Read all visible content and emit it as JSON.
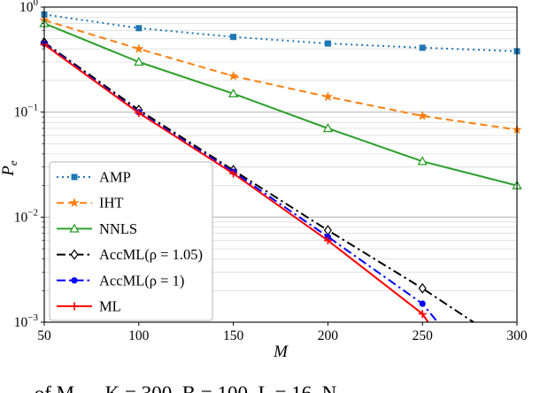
{
  "chart_data": {
    "type": "line",
    "title": "",
    "xlabel": "M",
    "ylabel": "P_e",
    "xlim": [
      50,
      300
    ],
    "ylim": [
      0.001,
      1
    ],
    "yscale": "log",
    "x_ticks": [
      50,
      100,
      150,
      200,
      250,
      300
    ],
    "y_tick_exponents": [
      0,
      -1,
      -2,
      -3
    ],
    "grid": "horizontal major and minor (log), light gray",
    "legend_position": "lower left",
    "series": [
      {
        "name": "AMP",
        "color": "#1f77b4",
        "line": "dotted",
        "marker": "square",
        "x": [
          50,
          100,
          150,
          200,
          250,
          300
        ],
        "y": [
          0.85,
          0.63,
          0.52,
          0.45,
          0.41,
          0.38
        ]
      },
      {
        "name": "IHT",
        "color": "#ff7f0e",
        "line": "dashed",
        "marker": "star",
        "x": [
          50,
          100,
          150,
          200,
          250,
          300
        ],
        "y": [
          0.75,
          0.4,
          0.22,
          0.14,
          0.092,
          0.068
        ]
      },
      {
        "name": "NNLS",
        "color": "#2ca02c",
        "line": "solid",
        "marker": "triangle",
        "x": [
          50,
          100,
          150,
          200,
          250,
          300
        ],
        "y": [
          0.7,
          0.3,
          0.15,
          0.07,
          0.034,
          0.02
        ]
      },
      {
        "name": "AccML(ρ = 1.05)",
        "color": "#000000",
        "line": "dashdot",
        "marker": "diamond",
        "x": [
          50,
          100,
          150,
          200,
          250,
          277
        ],
        "y": [
          0.46,
          0.105,
          0.028,
          0.0075,
          0.0021,
          0.001
        ]
      },
      {
        "name": "AccML(ρ = 1)",
        "color": "#0000ff",
        "line": "dashdot",
        "marker": "circle",
        "x": [
          50,
          100,
          150,
          200,
          250,
          258
        ],
        "y": [
          0.45,
          0.1,
          0.027,
          0.0065,
          0.0015,
          0.001
        ]
      },
      {
        "name": "ML",
        "color": "#ff0000",
        "line": "solid",
        "marker": "plus",
        "x": [
          50,
          100,
          150,
          200,
          250,
          253
        ],
        "y": [
          0.44,
          0.098,
          0.026,
          0.006,
          0.0012,
          0.001
        ]
      }
    ]
  },
  "caption": "… of M …  K = 300,  B = 100,  L = 16,  N …"
}
